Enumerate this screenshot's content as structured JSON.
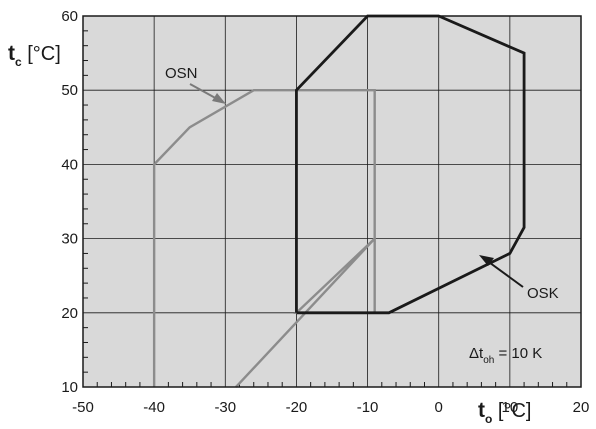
{
  "chart_data": {
    "type": "line",
    "xlabel": {
      "main": "t",
      "sub": "o",
      "unit": " [°C]"
    },
    "ylabel": {
      "main": "t",
      "sub": "c",
      "unit": " [°C]"
    },
    "xlim": [
      -50,
      20
    ],
    "ylim": [
      10,
      60
    ],
    "xticks": [
      -50,
      -40,
      -30,
      -20,
      -10,
      0,
      10,
      20
    ],
    "yticks": [
      10,
      20,
      30,
      40,
      50,
      60
    ],
    "grid": true,
    "background": "#d9d9d9",
    "series": [
      {
        "name": "OSN",
        "color": "#8c8c8c",
        "x": [
          -40,
          -40,
          -35,
          -26,
          -9,
          -9,
          -20,
          -9,
          -9,
          -28.5
        ],
        "y": [
          10,
          40,
          45,
          50,
          50,
          30,
          20,
          20,
          30,
          10
        ]
      },
      {
        "name": "OSK",
        "color": "#1a1a1a",
        "x": [
          -20,
          -20,
          -10,
          0,
          12,
          12,
          10,
          -7,
          -20
        ],
        "y": [
          20,
          50,
          60,
          60,
          55,
          31.5,
          28,
          20,
          20
        ]
      }
    ],
    "annotations": {
      "condition_main": "Δt",
      "condition_sub": "oh",
      "condition_rest": " = 10 K"
    }
  }
}
